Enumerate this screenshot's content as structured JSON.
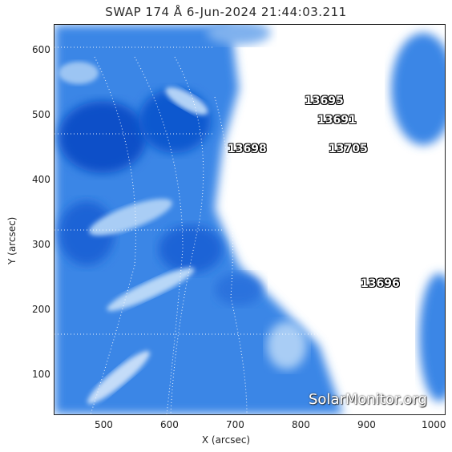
{
  "title": "SWAP 174 Å  6-Jun-2024 21:44:03.211",
  "axes": {
    "xlabel": "X (arcsec)",
    "ylabel": "Y (arcsec)",
    "x_ticks": [
      "500",
      "600",
      "700",
      "800",
      "900",
      "1000"
    ],
    "y_ticks": [
      "100",
      "200",
      "300",
      "400",
      "500",
      "600"
    ]
  },
  "active_regions": [
    "13695",
    "13691",
    "13698",
    "13705",
    "13696"
  ],
  "watermark": "SolarMonitor.org",
  "colors": {
    "deep_blue": "#0a4fc8",
    "mid_blue": "#3b86e6",
    "light_blue": "#a9cdf5",
    "saturated": "#ffffff"
  }
}
